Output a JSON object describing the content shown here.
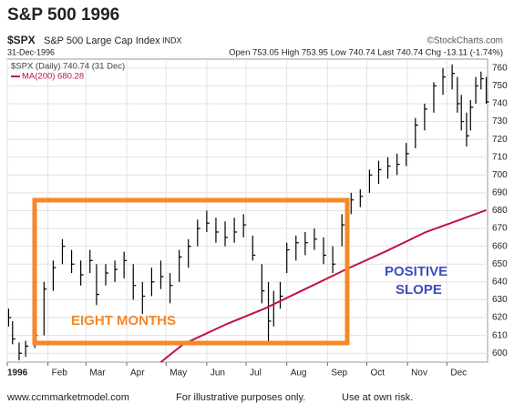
{
  "chart_data": {
    "type": "ohlc",
    "title": "S&P 500 1996",
    "header": {
      "symbol": "$SPX",
      "name": "S&P 500 Large Cap Index",
      "exchange": "INDX",
      "credit": "©StockCharts.com",
      "date": "31-Dec-1996",
      "stats": "Open 753.05  High 753.95  Low 740.74  Last 740.74  Chg -13.11 (-1.74%)"
    },
    "legend": [
      "$SPX (Daily) 740.74 (31 Dec)",
      "MA(200) 680.28"
    ],
    "annotations": {
      "box_label": "EIGHT MONTHS",
      "slope_label": [
        "POSITIVE",
        "SLOPE"
      ]
    },
    "footer": [
      "www.ccmmarketmodel.com",
      "For illustrative purposes only.",
      "Use at own risk."
    ],
    "xlim": [
      1,
      367
    ],
    "ylim": [
      595,
      765
    ],
    "xticks": [
      {
        "value": 1,
        "label": "1996"
      },
      {
        "value": 32,
        "label": "Feb"
      },
      {
        "value": 61,
        "label": "Mar"
      },
      {
        "value": 92,
        "label": "Apr"
      },
      {
        "value": 122,
        "label": "May"
      },
      {
        "value": 153,
        "label": "Jun"
      },
      {
        "value": 183,
        "label": "Jul"
      },
      {
        "value": 214,
        "label": "Aug"
      },
      {
        "value": 245,
        "label": "Sep"
      },
      {
        "value": 275,
        "label": "Oct"
      },
      {
        "value": 306,
        "label": "Nov"
      },
      {
        "value": 336,
        "label": "Dec"
      }
    ],
    "yticks": [
      600,
      610,
      620,
      630,
      640,
      650,
      660,
      670,
      680,
      690,
      700,
      710,
      720,
      730,
      740,
      750,
      760
    ],
    "grid": true,
    "series": [
      {
        "name": "$SPX",
        "color": "#000000",
        "x": [
          2,
          5,
          10,
          15,
          22,
          29,
          36,
          43,
          50,
          57,
          64,
          69,
          76,
          83,
          90,
          97,
          104,
          111,
          118,
          125,
          132,
          139,
          146,
          153,
          160,
          167,
          174,
          181,
          188,
          195,
          200,
          204,
          209,
          214,
          221,
          228,
          235,
          242,
          249,
          256,
          263,
          270,
          277,
          284,
          291,
          298,
          305,
          312,
          319,
          326,
          333,
          340,
          344,
          347,
          351,
          354,
          358,
          362,
          366
        ],
        "low": [
          615,
          605,
          596,
          598,
          603,
          610,
          635,
          650,
          645,
          638,
          645,
          627,
          638,
          640,
          642,
          630,
          622,
          632,
          636,
          628,
          640,
          648,
          660,
          668,
          662,
          660,
          662,
          665,
          652,
          628,
          607,
          615,
          625,
          645,
          652,
          655,
          658,
          650,
          645,
          660,
          678,
          682,
          690,
          695,
          698,
          700,
          705,
          715,
          725,
          735,
          745,
          748,
          735,
          725,
          716,
          725,
          740,
          748,
          740
        ],
        "high": [
          625,
          618,
          606,
          607,
          614,
          640,
          652,
          664,
          658,
          652,
          658,
          650,
          650,
          652,
          657,
          650,
          640,
          648,
          652,
          645,
          658,
          664,
          675,
          680,
          676,
          674,
          676,
          678,
          666,
          650,
          640,
          635,
          640,
          662,
          666,
          668,
          670,
          665,
          660,
          678,
          690,
          692,
          703,
          708,
          710,
          712,
          718,
          732,
          740,
          752,
          760,
          762,
          755,
          745,
          735,
          742,
          755,
          758,
          755
        ],
        "close": [
          620,
          608,
          600,
          604,
          610,
          636,
          648,
          660,
          650,
          644,
          652,
          633,
          645,
          647,
          652,
          638,
          632,
          640,
          643,
          638,
          654,
          660,
          670,
          673,
          668,
          665,
          668,
          672,
          655,
          635,
          618,
          628,
          632,
          658,
          662,
          662,
          664,
          655,
          650,
          672,
          686,
          688,
          700,
          703,
          705,
          706,
          712,
          728,
          737,
          750,
          755,
          757,
          740,
          730,
          722,
          738,
          750,
          754,
          741
        ]
      },
      {
        "name": "MA(200)",
        "color": "#c0143c",
        "x": [
          118,
          135,
          167,
          197,
          228,
          259,
          289,
          320,
          350,
          366
        ],
        "values": [
          595,
          605,
          616,
          625,
          636,
          647,
          657,
          668,
          676,
          680.28
        ]
      }
    ]
  }
}
